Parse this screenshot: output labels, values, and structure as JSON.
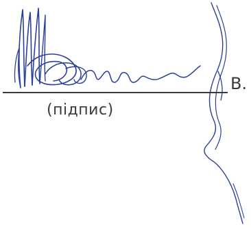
{
  "document": {
    "caption": "(підпис)",
    "initial": "В."
  },
  "colors": {
    "ink": "#2a3f9a",
    "text": "#3a3a3a",
    "line": "#3b3b3b",
    "background": "#ffffff"
  }
}
